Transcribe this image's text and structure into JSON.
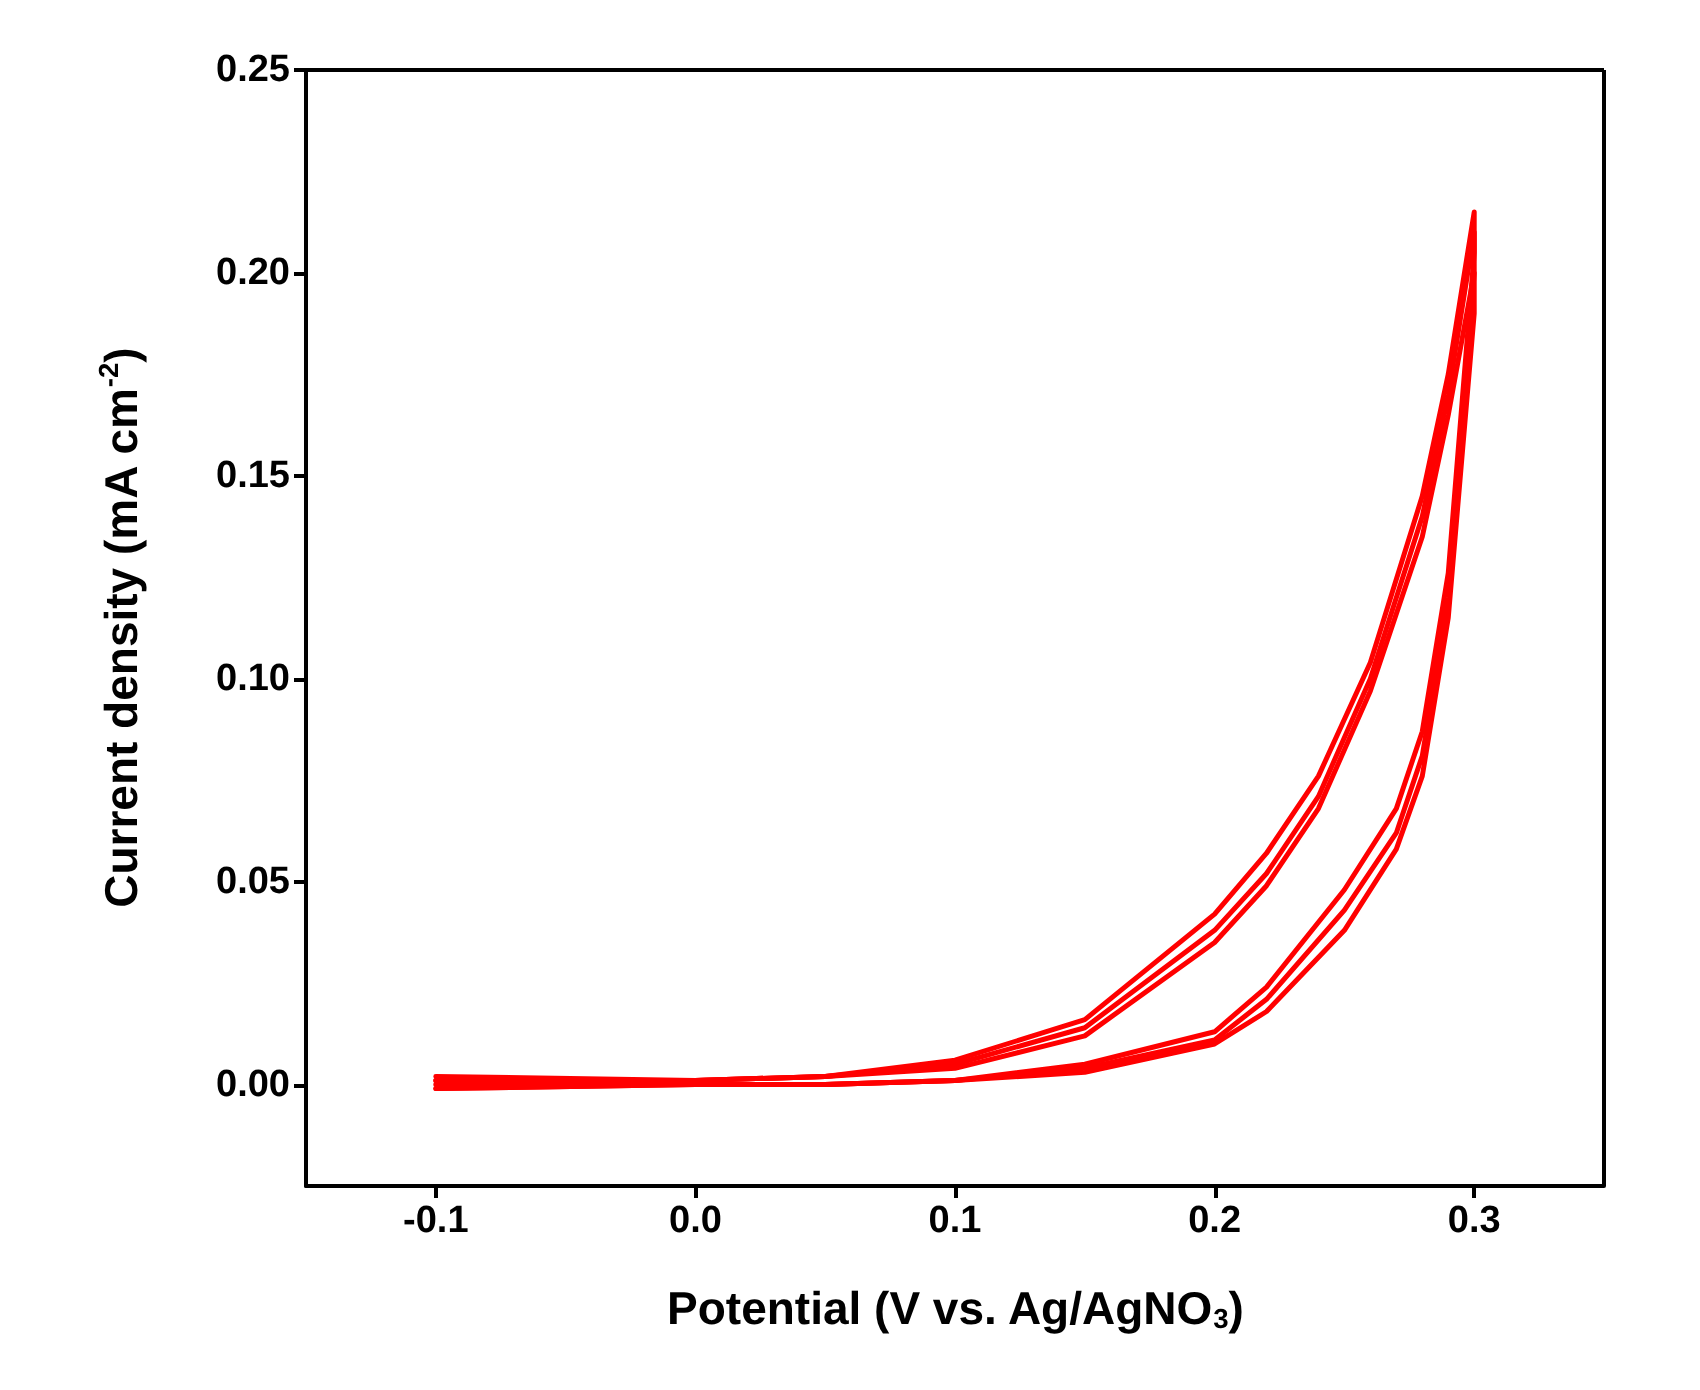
{
  "chart_data": {
    "type": "line",
    "xlabel": "Potential (V vs. Ag/AgNO$_{3}$)",
    "ylabel": "Current density (mA cm$^{-2}$)",
    "xlim": [
      -0.15,
      0.35
    ],
    "xticks": [
      -0.1,
      {
        "value": 0,
        "label": "0.0"
      },
      0.1,
      0.2,
      0.3
    ],
    "ylim": [
      -0.025,
      0.25
    ],
    "yticks": [
      {
        "value": 0,
        "label": "0.00"
      },
      0.05,
      {
        "value": 0.1,
        "label": "0.10"
      },
      0.15,
      {
        "value": 0.2,
        "label": "0.20"
      },
      0.25
    ],
    "grid": false,
    "marker": "none",
    "line_style": "solid",
    "series": [
      {
        "color": "#ff0000",
        "x": [
          -0.1,
          0.0,
          0.05,
          0.1,
          0.15,
          0.2,
          0.22,
          0.25,
          0.27,
          0.28,
          0.29,
          0.3,
          0.3,
          0.29,
          0.28,
          0.26,
          0.24,
          0.22,
          0.2,
          0.15,
          0.1,
          0.05,
          0.0,
          -0.1
        ],
        "values": [
          0.0,
          0.0,
          0.0,
          0.001,
          0.003,
          0.01,
          0.018,
          0.038,
          0.058,
          0.076,
          0.115,
          0.19,
          0.2,
          0.165,
          0.135,
          0.097,
          0.068,
          0.049,
          0.035,
          0.012,
          0.004,
          0.002,
          0.001,
          0.001
        ]
      },
      {
        "color": "#ff0000",
        "x": [
          -0.1,
          0.0,
          0.05,
          0.1,
          0.15,
          0.2,
          0.22,
          0.25,
          0.27,
          0.28,
          0.29,
          0.3,
          0.3,
          0.29,
          0.28,
          0.26,
          0.24,
          0.22,
          0.2,
          0.15,
          0.1,
          0.05,
          0.0,
          -0.1
        ],
        "values": [
          -0.001,
          0.0,
          0.0,
          0.001,
          0.004,
          0.011,
          0.021,
          0.043,
          0.062,
          0.081,
          0.12,
          0.2,
          0.21,
          0.17,
          0.14,
          0.1,
          0.071,
          0.052,
          0.038,
          0.014,
          0.005,
          0.002,
          0.001,
          0.002
        ]
      },
      {
        "color": "#ff0000",
        "x": [
          -0.1,
          0.0,
          0.05,
          0.1,
          0.15,
          0.2,
          0.22,
          0.25,
          0.27,
          0.28,
          0.29,
          0.3,
          0.3,
          0.29,
          0.28,
          0.26,
          0.24,
          0.22,
          0.2,
          0.15,
          0.1,
          0.05,
          0.0,
          -0.1
        ],
        "values": [
          -0.001,
          0.0,
          0.0,
          0.001,
          0.005,
          0.013,
          0.024,
          0.048,
          0.068,
          0.087,
          0.126,
          0.205,
          0.215,
          0.175,
          0.145,
          0.104,
          0.076,
          0.057,
          0.042,
          0.016,
          0.006,
          0.002,
          0.001,
          0.001
        ]
      }
    ]
  }
}
